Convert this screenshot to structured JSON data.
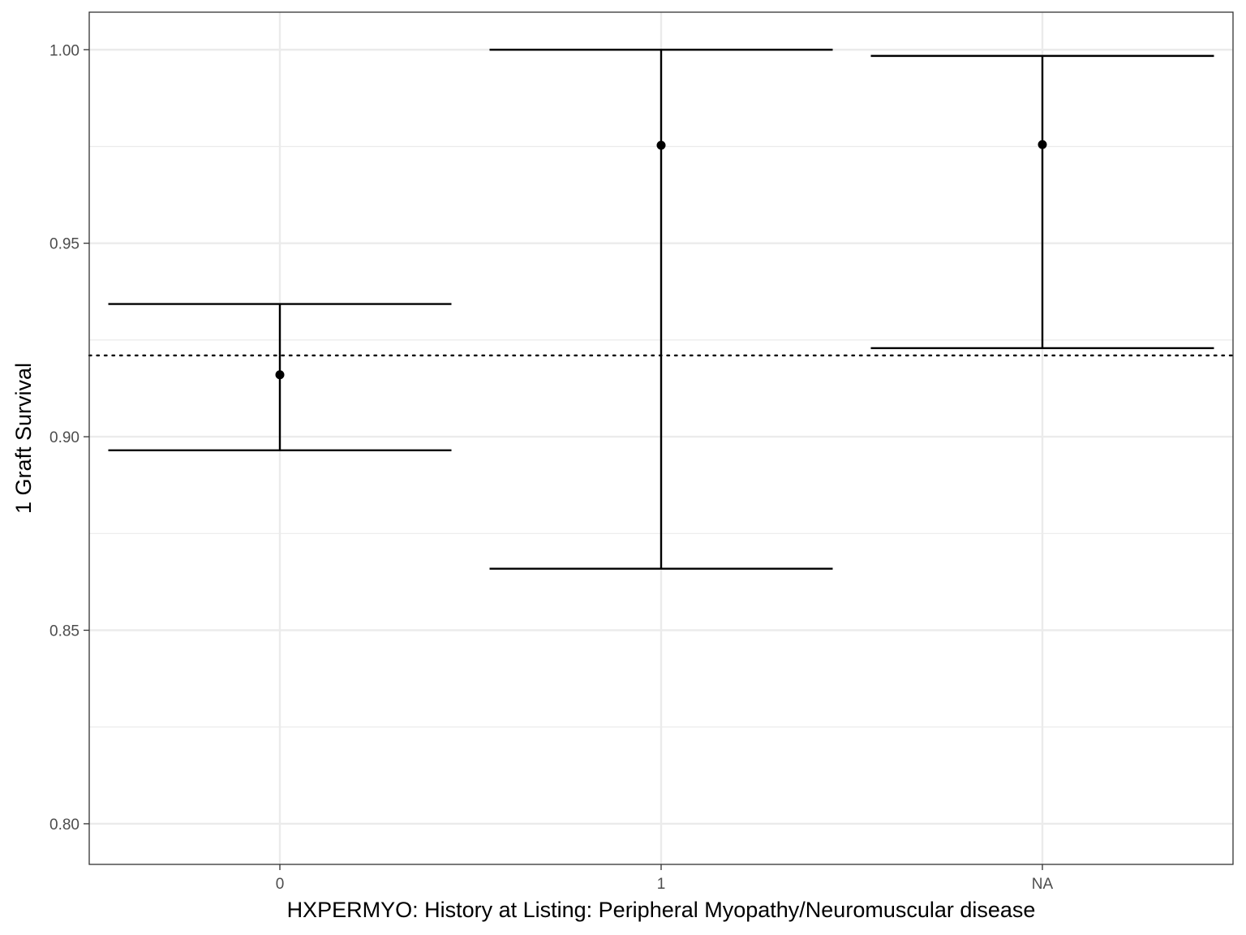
{
  "chart_data": {
    "type": "errorbar",
    "title": "",
    "xlabel": "HXPERMYO: History at Listing: Peripheral Myopathy/Neuromuscular disease",
    "ylabel": "1 Graft Survival",
    "categories": [
      "0",
      "1",
      "NA"
    ],
    "points": [
      {
        "category": "0",
        "estimate": 0.916,
        "lower": 0.8965,
        "upper": 0.9343
      },
      {
        "category": "1",
        "estimate": 0.9753,
        "lower": 0.8659,
        "upper": 1.0
      },
      {
        "category": "NA",
        "estimate": 0.9755,
        "lower": 0.9229,
        "upper": 0.9984
      }
    ],
    "reference_line": {
      "value": 0.921,
      "style": "dotted"
    },
    "ylim": [
      0.7895,
      1.0097
    ],
    "yticks": [
      0.8,
      0.85,
      0.9,
      0.95,
      1.0
    ],
    "ytick_labels": [
      "0.80",
      "0.85",
      "0.90",
      "0.95",
      "1.00"
    ],
    "grid": true,
    "legend": "none"
  }
}
